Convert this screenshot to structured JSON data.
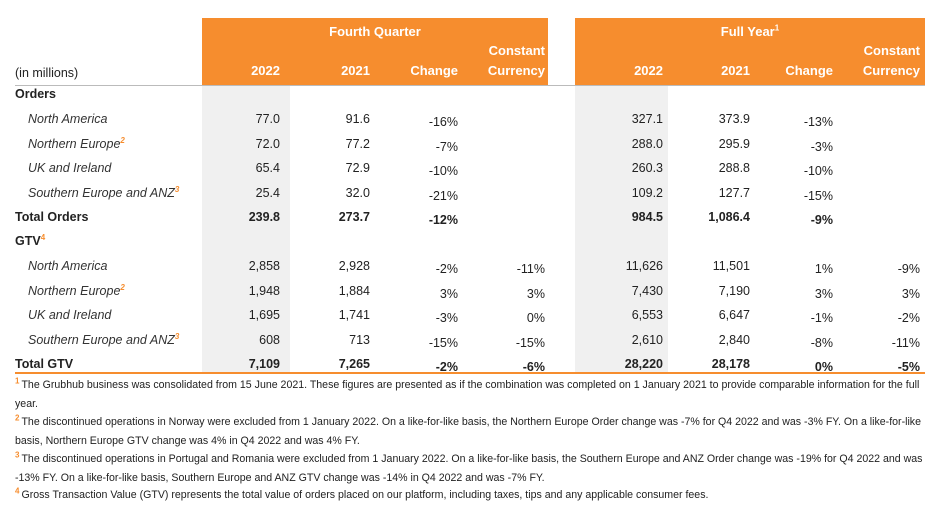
{
  "header": {
    "unit": "(in millions)",
    "groups": [
      {
        "title": "Fourth Quarter"
      },
      {
        "title": "Full Year",
        "note": "1"
      }
    ],
    "columns": [
      "2022",
      "2021",
      "Change",
      "Constant Currency",
      "2022",
      "2021",
      "Change",
      "Constant Currency"
    ]
  },
  "sections": [
    {
      "title": "Orders",
      "rows": [
        {
          "label": "North America",
          "q4": [
            "77.0",
            "91.6",
            "-16%"
          ],
          "fy": [
            "327.1",
            "373.9",
            "-13%"
          ]
        },
        {
          "label": "Northern Europe",
          "note": "2",
          "q4": [
            "72.0",
            "77.2",
            "-7%"
          ],
          "fy": [
            "288.0",
            "295.9",
            "-3%"
          ]
        },
        {
          "label": "UK and Ireland",
          "q4": [
            "65.4",
            "72.9",
            "-10%"
          ],
          "fy": [
            "260.3",
            "288.8",
            "-10%"
          ]
        },
        {
          "label": "Southern Europe and ANZ",
          "note": "3",
          "q4": [
            "25.4",
            "32.0",
            "-21%"
          ],
          "fy": [
            "109.2",
            "127.7",
            "-15%"
          ]
        }
      ],
      "total": {
        "label": "Total Orders",
        "q4": [
          "239.8",
          "273.7",
          "-12%"
        ],
        "fy": [
          "984.5",
          "1,086.4",
          "-9%"
        ]
      }
    },
    {
      "title": "GTV",
      "note": "4",
      "rows": [
        {
          "label": "North America",
          "q4": [
            "2,858",
            "2,928",
            "-2%",
            "-11%"
          ],
          "fy": [
            "11,626",
            "11,501",
            "1%",
            "-9%"
          ]
        },
        {
          "label": "Northern Europe",
          "note": "2",
          "q4": [
            "1,948",
            "1,884",
            "3%",
            "3%"
          ],
          "fy": [
            "7,430",
            "7,190",
            "3%",
            "3%"
          ]
        },
        {
          "label": "UK and Ireland",
          "q4": [
            "1,695",
            "1,741",
            "-3%",
            "0%"
          ],
          "fy": [
            "6,553",
            "6,647",
            "-1%",
            "-2%"
          ]
        },
        {
          "label": "Southern Europe and ANZ",
          "note": "3",
          "q4": [
            "608",
            "713",
            "-15%",
            "-15%"
          ],
          "fy": [
            "2,610",
            "2,840",
            "-8%",
            "-11%"
          ]
        }
      ],
      "total": {
        "label": "Total GTV",
        "q4": [
          "7,109",
          "7,265",
          "-2%",
          "-6%"
        ],
        "fy": [
          "28,220",
          "28,178",
          "0%",
          "-5%"
        ]
      }
    }
  ],
  "footnotes": [
    {
      "marker": "1",
      "text": "The Grubhub business was consolidated from 15 June 2021. These figures are presented as if the combination was completed on 1 January 2021 to provide comparable information for the full year."
    },
    {
      "marker": "2",
      "text": "The discontinued operations in Norway were excluded from 1 January 2022. On a like-for-like basis, the Northern Europe Order change was -7% for Q4 2022 and was -3% FY. On a like-for-like basis, Northern Europe GTV change was 4% in Q4 2022 and was 4% FY."
    },
    {
      "marker": "3",
      "text": "The discontinued operations in Portugal and Romania were excluded from 1 January 2022. On a like-for-like basis, the Southern Europe and ANZ Order change was -19% for Q4 2022 and was -13% FY. On a like-for-like basis, Southern Europe and ANZ GTV change was -14% in Q4 2022 and was -7% FY."
    },
    {
      "marker": "4",
      "text": "Gross Transaction Value (GTV) represents the total value of orders placed on our platform, including taxes, tips and any applicable consumer fees."
    }
  ]
}
